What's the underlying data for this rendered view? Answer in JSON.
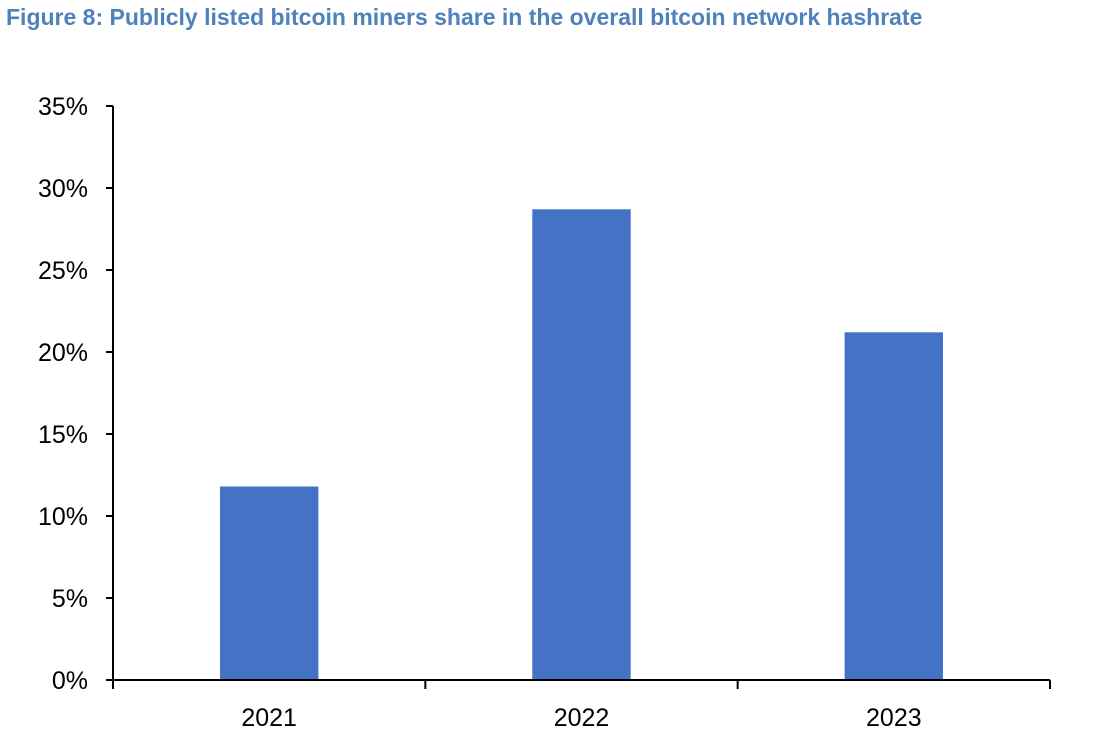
{
  "title": "Figure 8: Publicly listed bitcoin miners share in the overall bitcoin network hashrate",
  "colors": {
    "title": "#4f81bd",
    "bar": "#4472c4",
    "axis": "#000000"
  },
  "chart_data": {
    "type": "bar",
    "categories": [
      "2021",
      "2022",
      "2023"
    ],
    "values": [
      11.8,
      28.7,
      21.2
    ],
    "unit": "%",
    "ylim": [
      0,
      35
    ],
    "yticks": [
      0,
      5,
      10,
      15,
      20,
      25,
      30,
      35
    ],
    "ytick_labels": [
      "0%",
      "5%",
      "10%",
      "15%",
      "20%",
      "25%",
      "30%",
      "35%"
    ],
    "grid": false,
    "legend": "none",
    "xlabel": "",
    "ylabel": ""
  }
}
